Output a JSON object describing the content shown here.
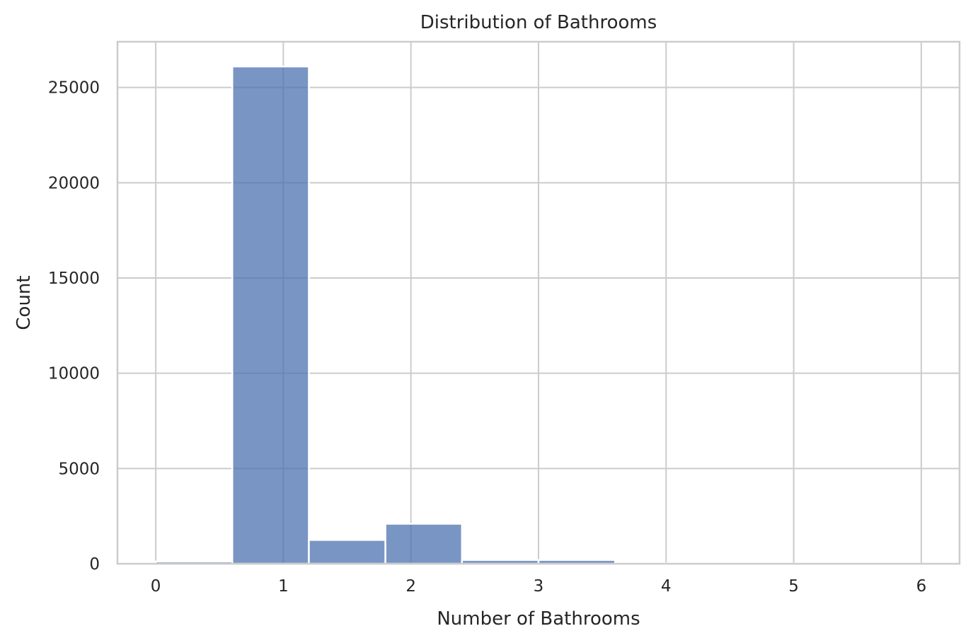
{
  "chart_data": {
    "type": "bar",
    "title": "Distribution of Bathrooms",
    "xlabel": "Number of Bathrooms",
    "ylabel": "Count",
    "bins": [
      {
        "x0": 0.0,
        "x1": 0.6,
        "count": 120
      },
      {
        "x0": 0.6,
        "x1": 1.2,
        "count": 26100
      },
      {
        "x0": 1.2,
        "x1": 1.8,
        "count": 1250
      },
      {
        "x0": 1.8,
        "x1": 2.4,
        "count": 2100
      },
      {
        "x0": 2.4,
        "x1": 3.0,
        "count": 200
      },
      {
        "x0": 3.0,
        "x1": 3.6,
        "count": 200
      },
      {
        "x0": 3.6,
        "x1": 4.2,
        "count": 20
      },
      {
        "x0": 4.2,
        "x1": 4.8,
        "count": 8
      },
      {
        "x0": 4.8,
        "x1": 5.4,
        "count": 5
      },
      {
        "x0": 5.4,
        "x1": 6.0,
        "count": 5
      }
    ],
    "xticks": [
      "0",
      "1",
      "2",
      "3",
      "4",
      "5",
      "6"
    ],
    "yticks": [
      "0",
      "5000",
      "10000",
      "15000",
      "20000",
      "25000"
    ],
    "xlim": [
      -0.3,
      6.3
    ],
    "ylim": [
      0,
      27400
    ],
    "grid": true,
    "bar_color": "#4c72b0"
  }
}
